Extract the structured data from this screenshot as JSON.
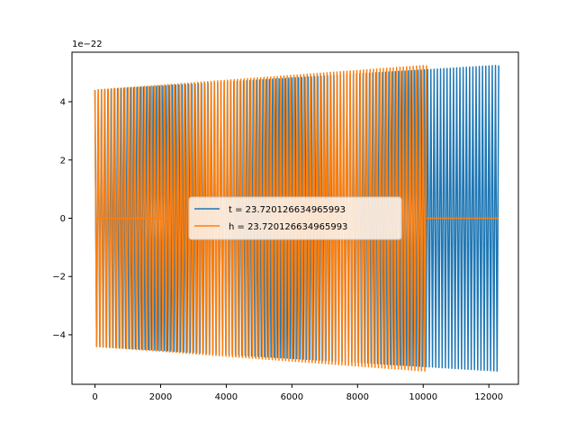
{
  "chart_data": {
    "type": "line",
    "title": "",
    "xlabel": "",
    "ylabel": "",
    "y_scale_label": "1e−22",
    "xlim": [
      -700,
      12900
    ],
    "ylim": [
      -5.7,
      5.7
    ],
    "x_ticks": [
      0,
      2000,
      4000,
      6000,
      8000,
      10000,
      12000
    ],
    "x_tick_labels": [
      "0",
      "2000",
      "4000",
      "6000",
      "8000",
      "10000",
      "12000"
    ],
    "y_ticks": [
      -4,
      -2,
      0,
      2,
      4
    ],
    "y_tick_labels": [
      "−4",
      "−2",
      "0",
      "2",
      "4"
    ],
    "grid": false,
    "legend_position": "center",
    "series": [
      {
        "name": "t = 23.720126634965993",
        "color": "#1f77b4",
        "x_start": 0,
        "x_end": 12300,
        "cycles": 125,
        "amplitude_start": 4.4,
        "amplitude_end": 5.25
      },
      {
        "name": "h = 23.720126634965993",
        "color": "#ff7f0e",
        "segments": [
          {
            "x_start": 0,
            "x_end": 100,
            "cycles": 0,
            "amplitude_start": 0,
            "amplitude_end": 0
          },
          {
            "x_start": 100,
            "x_end": 2250,
            "cycles": 0,
            "amplitude_start": 0,
            "amplitude_end": 0
          },
          {
            "x_start": 0,
            "x_end": 10100,
            "cycles": 100,
            "amplitude_start": 4.4,
            "amplitude_end": 5.25
          },
          {
            "x_start": 10100,
            "x_end": 12300,
            "cycles": 0,
            "amplitude_start": 0,
            "amplitude_end": 0
          }
        ]
      }
    ]
  }
}
